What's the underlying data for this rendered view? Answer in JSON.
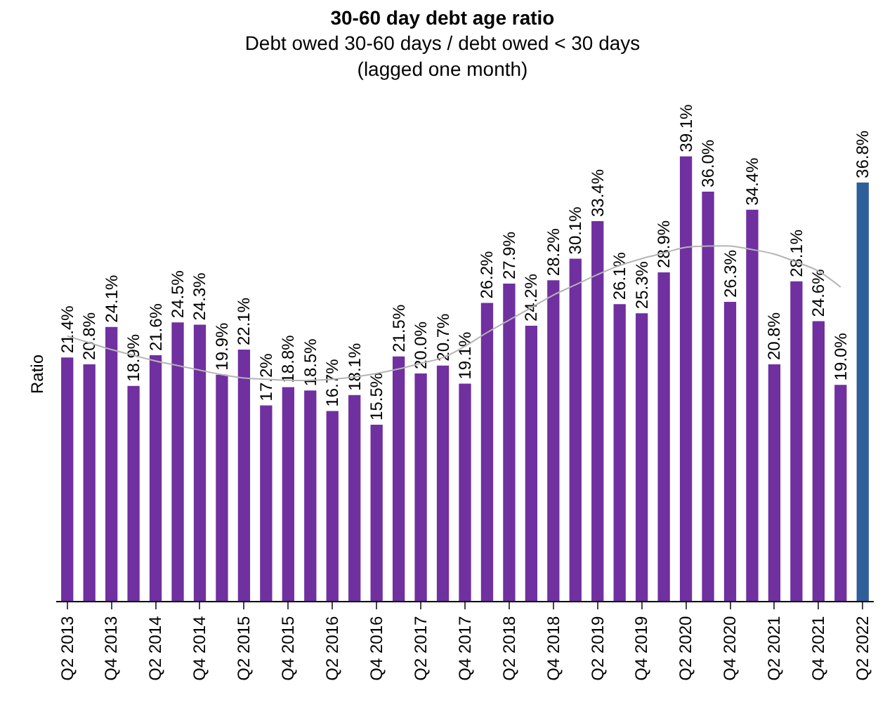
{
  "chart_data": {
    "type": "bar",
    "title": "30-60 day debt age ratio",
    "subtitle": "Debt owed 30-60 days / debt owed < 30 days\n(lagged one month)",
    "ylabel": "Ratio",
    "categories": [
      "Q2 2013",
      null,
      "Q4 2013",
      null,
      "Q2 2014",
      null,
      "Q4 2014",
      null,
      "Q2 2015",
      null,
      "Q4 2015",
      null,
      "Q2 2016",
      null,
      "Q4 2016",
      null,
      "Q2 2017",
      null,
      "Q4 2017",
      null,
      "Q2 2018",
      null,
      "Q4 2018",
      null,
      "Q2 2019",
      null,
      "Q4 2019",
      null,
      "Q2 2020",
      null,
      "Q4 2020",
      null,
      "Q2 2021",
      null,
      "Q4 2021",
      null,
      "Q2 2022"
    ],
    "series": [
      {
        "values": [
          21.4,
          20.8,
          24.1,
          18.9,
          21.6,
          24.5,
          24.3,
          19.9,
          22.1,
          17.2,
          18.8,
          18.5,
          16.7,
          18.1,
          15.5,
          21.5,
          20.0,
          20.7,
          19.1,
          26.2,
          27.9,
          24.2,
          28.2,
          30.1,
          33.4,
          26.1,
          25.3,
          28.9,
          39.1,
          36.0,
          26.3,
          34.4,
          20.8,
          28.1,
          24.6,
          19.0,
          36.8
        ],
        "colors": [
          "#7030a0",
          "#7030a0",
          "#7030a0",
          "#7030a0",
          "#7030a0",
          "#7030a0",
          "#7030a0",
          "#7030a0",
          "#7030a0",
          "#7030a0",
          "#7030a0",
          "#7030a0",
          "#7030a0",
          "#7030a0",
          "#7030a0",
          "#7030a0",
          "#7030a0",
          "#7030a0",
          "#7030a0",
          "#7030a0",
          "#7030a0",
          "#7030a0",
          "#7030a0",
          "#7030a0",
          "#7030a0",
          "#7030a0",
          "#7030a0",
          "#7030a0",
          "#7030a0",
          "#7030a0",
          "#7030a0",
          "#7030a0",
          "#7030a0",
          "#7030a0",
          "#7030a0",
          "#7030a0",
          "#2e5f9a"
        ],
        "value_labels": [
          "21.4%",
          "20.8%",
          "24.1%",
          "18.9%",
          "21.6%",
          "24.5%",
          "24.3%",
          "19.9%",
          "22.1%",
          "17.2%",
          "18.8%",
          "18.5%",
          "16.7%",
          "18.1%",
          "15.5%",
          "21.5%",
          "20.0%",
          "20.7%",
          "19.1%",
          "26.2%",
          "27.9%",
          "24.2%",
          "28.2%",
          "30.1%",
          "33.4%",
          "26.1%",
          "25.3%",
          "28.9%",
          "39.1%",
          "36.0%",
          "26.3%",
          "34.4%",
          "20.8%",
          "28.1%",
          "24.6%",
          "19.0%",
          "36.8%"
        ]
      },
      {
        "type": "line",
        "color": "#b4b4b4",
        "values": [
          23.3,
          22.7,
          22.1,
          21.6,
          21.1,
          20.7,
          20.3,
          19.9,
          19.6,
          19.5,
          19.4,
          19.4,
          19.5,
          19.7,
          20.0,
          20.4,
          20.9,
          21.4,
          22.4,
          23.6,
          24.7,
          25.8,
          26.9,
          27.8,
          28.7,
          29.5,
          30.1,
          30.6,
          31.1,
          31.2,
          31.2,
          30.9,
          30.5,
          29.8,
          29.0,
          27.6,
          null
        ]
      }
    ],
    "tick_labels": "x"
  }
}
